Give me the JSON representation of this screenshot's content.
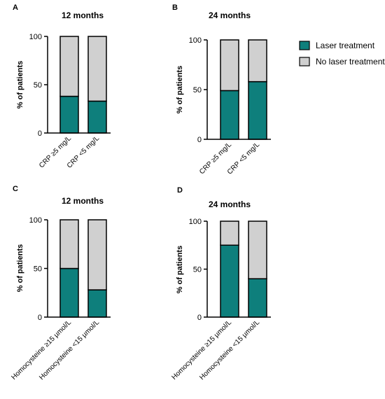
{
  "legend": {
    "items": [
      {
        "label": "Laser treatment",
        "color": "#0e7f7c"
      },
      {
        "label": "No laser treatment",
        "color": "#d0d0d0"
      }
    ]
  },
  "chart_data": [
    {
      "type": "bar",
      "stacked": true,
      "panel": "A",
      "title": "12 months",
      "xlabel": "",
      "ylabel": "% of patients",
      "ylim": [
        0,
        100
      ],
      "yticks": [
        "0",
        "50",
        "100"
      ],
      "categories": [
        "CRP ≥5 mg/L",
        "CRP <5 mg/L"
      ],
      "series": [
        {
          "name": "Laser treatment",
          "values": [
            38,
            33
          ]
        },
        {
          "name": "No laser treatment",
          "values": [
            62,
            67
          ]
        }
      ]
    },
    {
      "type": "bar",
      "stacked": true,
      "panel": "B",
      "title": "24 months",
      "xlabel": "",
      "ylabel": "% of patients",
      "ylim": [
        0,
        100
      ],
      "yticks": [
        "0",
        "50",
        "100"
      ],
      "categories": [
        "CRP ≥5 mg/L",
        "CRP <5 mg/L"
      ],
      "series": [
        {
          "name": "Laser treatment",
          "values": [
            49,
            58
          ]
        },
        {
          "name": "No laser treatment",
          "values": [
            51,
            42
          ]
        }
      ]
    },
    {
      "type": "bar",
      "stacked": true,
      "panel": "C",
      "title": "12 months",
      "xlabel": "",
      "ylabel": "% of patients",
      "ylim": [
        0,
        100
      ],
      "yticks": [
        "0",
        "50",
        "100"
      ],
      "categories": [
        "Homocysteine ≥15 µmol/L",
        "Homocysteine <15 µmol/L"
      ],
      "series": [
        {
          "name": "Laser treatment",
          "values": [
            50,
            28
          ]
        },
        {
          "name": "No laser treatment",
          "values": [
            50,
            72
          ]
        }
      ]
    },
    {
      "type": "bar",
      "stacked": true,
      "panel": "D",
      "title": "24 months",
      "xlabel": "",
      "ylabel": "% of patients",
      "ylim": [
        0,
        100
      ],
      "yticks": [
        "0",
        "50",
        "100"
      ],
      "categories": [
        "Homocysteine ≥15 µmol/L",
        "Homocysteine <15 µmol/L"
      ],
      "series": [
        {
          "name": "Laser treatment",
          "values": [
            75,
            40
          ]
        },
        {
          "name": "No laser treatment",
          "values": [
            25,
            60
          ]
        }
      ]
    }
  ]
}
